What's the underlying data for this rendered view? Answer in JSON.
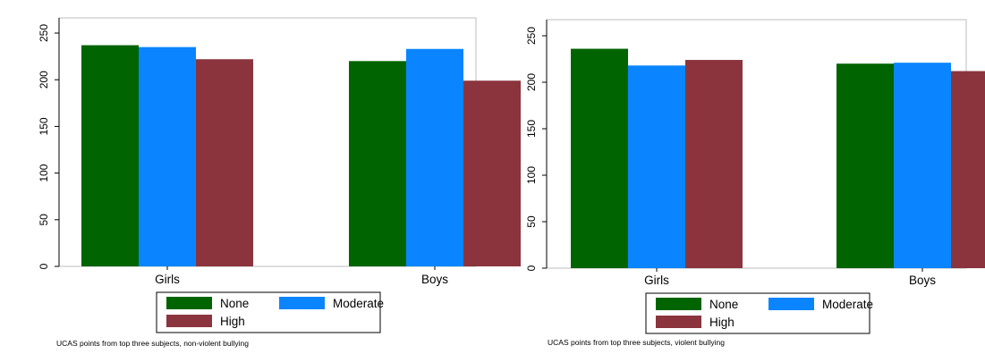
{
  "chart_data": [
    {
      "type": "bar",
      "categories": [
        "Girls",
        "Boys"
      ],
      "series": [
        {
          "name": "None",
          "values": [
            237,
            220
          ],
          "color": "#006400"
        },
        {
          "name": "Moderate",
          "values": [
            235,
            233
          ],
          "color": "#0A85FF"
        },
        {
          "name": "High",
          "values": [
            222,
            199
          ],
          "color": "#8B343D"
        }
      ],
      "ylim": [
        0,
        250
      ],
      "yticks": [
        0,
        50,
        100,
        150,
        200,
        250
      ],
      "ytick_labels": [
        "0",
        "50",
        "100",
        "150",
        "200",
        "250"
      ],
      "grid": false,
      "legend_position": "bottom",
      "note": "UCAS points from top three subjects, non-violent bullying"
    },
    {
      "type": "bar",
      "categories": [
        "Girls",
        "Boys"
      ],
      "series": [
        {
          "name": "None",
          "values": [
            236,
            220
          ],
          "color": "#006400"
        },
        {
          "name": "Moderate",
          "values": [
            218,
            221
          ],
          "color": "#0A85FF"
        },
        {
          "name": "High",
          "values": [
            224,
            212
          ],
          "color": "#8B343D"
        }
      ],
      "ylim": [
        0,
        250
      ],
      "yticks": [
        0,
        50,
        100,
        150,
        200,
        250
      ],
      "ytick_labels": [
        "0",
        "50",
        "100",
        "150",
        "200",
        "250"
      ],
      "grid": false,
      "legend_position": "bottom",
      "note": "UCAS points from top three subjects, violent bullying"
    }
  ]
}
